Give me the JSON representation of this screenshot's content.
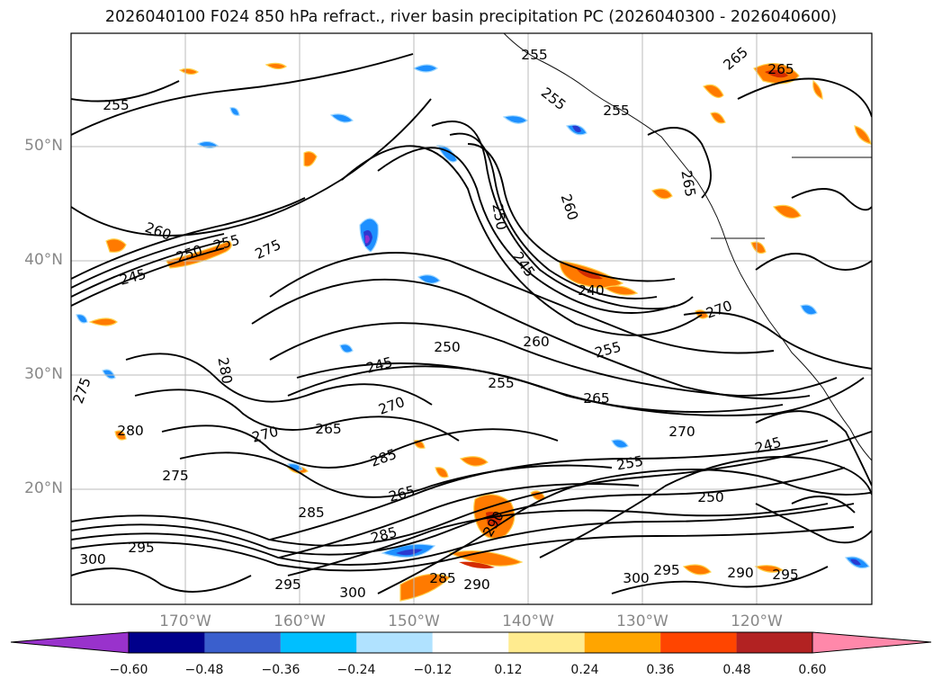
{
  "title": "2026040100 F024 850 hPa refract., river basin precipitation PC (2026040300 - 2026040600)",
  "map": {
    "lat_labels": [
      "50°N",
      "40°N",
      "30°N",
      "20°N"
    ],
    "lon_labels": [
      "170°W",
      "160°W",
      "150°W",
      "140°W",
      "130°W",
      "120°W"
    ],
    "contour_labels": [
      "255",
      "255",
      "255",
      "255",
      "265",
      "265",
      "260",
      "265",
      "250",
      "245",
      "240",
      "270",
      "255",
      "260",
      "250",
      "245",
      "255",
      "265",
      "270",
      "245",
      "255",
      "250",
      "260",
      "255",
      "250",
      "275",
      "245",
      "280",
      "275",
      "280",
      "270",
      "265",
      "285",
      "270",
      "265",
      "285",
      "290",
      "300",
      "295",
      "300",
      "295",
      "285",
      "290",
      "300",
      "295",
      "290",
      "295",
      "285",
      "275"
    ]
  },
  "colorbar": {
    "ticks": [
      "−0.60",
      "−0.48",
      "−0.36",
      "−0.24",
      "−0.12",
      "0.12",
      "0.24",
      "0.36",
      "0.48",
      "0.60"
    ],
    "colors": [
      "#9932cc",
      "#00008b",
      "#3a5fcd",
      "#00bfff",
      "#b0e2ff",
      "#ffffff",
      "#ffeb8f",
      "#ffa500",
      "#ff4500",
      "#b22222",
      "#ff88aa"
    ]
  }
}
